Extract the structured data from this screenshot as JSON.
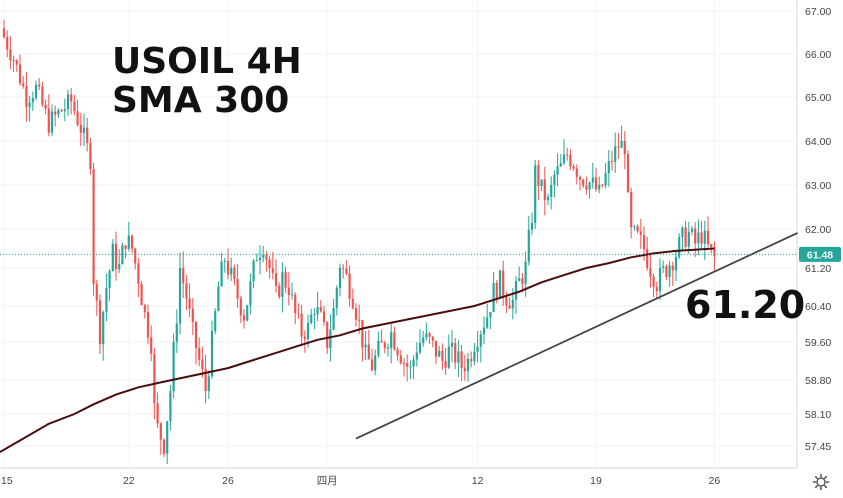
{
  "chart_data": {
    "type": "candlestick",
    "title_line1": "USOIL 4H",
    "title_line2": "SMA 300",
    "annotation_price": "61.20",
    "last_price_label": "61.48",
    "last_price": 61.48,
    "x_tick_labels": [
      "15",
      "22",
      "26",
      "四月",
      "12",
      "19",
      "26"
    ],
    "y_tick_labels": [
      "67.00",
      "66.00",
      "65.00",
      "64.00",
      "63.00",
      "62.00",
      "61.20",
      "60.40",
      "59.60",
      "58.80",
      "58.10",
      "57.45"
    ],
    "ylim": [
      57.2,
      67.2
    ],
    "grid": true,
    "colors": {
      "up": "#26a69a",
      "down": "#ef5350",
      "sma": "#4a0e0e",
      "trendline": "#444444",
      "price_tag": "#26a69a"
    },
    "close_path": [
      [
        0,
        66.4
      ],
      [
        3,
        65.9
      ],
      [
        7,
        65.0
      ],
      [
        10,
        65.2
      ],
      [
        14,
        64.4
      ],
      [
        18,
        64.7
      ],
      [
        21,
        64.9
      ],
      [
        24,
        64.3
      ],
      [
        27,
        63.6
      ],
      [
        28,
        61.0
      ],
      [
        29,
        60.4
      ],
      [
        30,
        59.8
      ],
      [
        32,
        60.8
      ],
      [
        34,
        61.5
      ],
      [
        36,
        61.2
      ],
      [
        38,
        61.8
      ],
      [
        40,
        61.6
      ],
      [
        42,
        61.0
      ],
      [
        44,
        60.2
      ],
      [
        46,
        59.6
      ],
      [
        47,
        58.2
      ],
      [
        48,
        57.8
      ],
      [
        50,
        57.5
      ],
      [
        52,
        58.6
      ],
      [
        54,
        60.2
      ],
      [
        55,
        61.2
      ],
      [
        57,
        60.6
      ],
      [
        59,
        59.8
      ],
      [
        61,
        59.2
      ],
      [
        63,
        58.6
      ],
      [
        65,
        59.6
      ],
      [
        67,
        60.8
      ],
      [
        69,
        61.4
      ],
      [
        71,
        61.0
      ],
      [
        73,
        60.6
      ],
      [
        75,
        60.2
      ],
      [
        77,
        60.8
      ],
      [
        79,
        61.5
      ],
      [
        81,
        61.7
      ],
      [
        83,
        61.2
      ],
      [
        85,
        60.6
      ],
      [
        87,
        61.0
      ],
      [
        89,
        60.8
      ],
      [
        91,
        60.2
      ],
      [
        93,
        59.8
      ],
      [
        95,
        59.9
      ],
      [
        97,
        60.4
      ],
      [
        99,
        60.1
      ],
      [
        101,
        59.6
      ],
      [
        103,
        60.3
      ],
      [
        105,
        61.3
      ],
      [
        107,
        61.0
      ],
      [
        109,
        60.6
      ],
      [
        111,
        60.0
      ],
      [
        113,
        59.3
      ],
      [
        115,
        59.1
      ],
      [
        117,
        59.4
      ],
      [
        119,
        59.6
      ],
      [
        121,
        59.8
      ],
      [
        123,
        59.5
      ],
      [
        125,
        59.2
      ],
      [
        127,
        59.0
      ],
      [
        129,
        59.5
      ],
      [
        131,
        59.7
      ],
      [
        133,
        59.6
      ],
      [
        135,
        59.4
      ],
      [
        137,
        59.2
      ],
      [
        139,
        59.4
      ],
      [
        141,
        59.3
      ],
      [
        143,
        59.1
      ],
      [
        145,
        59.2
      ],
      [
        147,
        59.6
      ],
      [
        149,
        59.9
      ],
      [
        151,
        60.2
      ],
      [
        153,
        60.7
      ],
      [
        155,
        60.9
      ],
      [
        157,
        60.6
      ],
      [
        159,
        60.5
      ],
      [
        161,
        60.9
      ],
      [
        163,
        61.2
      ],
      [
        165,
        62.3
      ],
      [
        166,
        63.3
      ],
      [
        168,
        62.9
      ],
      [
        170,
        62.6
      ],
      [
        172,
        63.2
      ],
      [
        174,
        63.4
      ],
      [
        176,
        63.7
      ],
      [
        178,
        63.5
      ],
      [
        180,
        63.2
      ],
      [
        182,
        63.1
      ],
      [
        184,
        63.0
      ],
      [
        186,
        62.8
      ],
      [
        188,
        63.2
      ],
      [
        190,
        63.6
      ],
      [
        192,
        63.9
      ],
      [
        194,
        63.9
      ],
      [
        195,
        62.6
      ],
      [
        196,
        61.9
      ],
      [
        198,
        61.8
      ],
      [
        200,
        61.6
      ],
      [
        202,
        61.2
      ],
      [
        204,
        60.9
      ],
      [
        206,
        61.1
      ],
      [
        208,
        61.3
      ],
      [
        210,
        61.5
      ],
      [
        212,
        61.8
      ],
      [
        214,
        61.9
      ],
      [
        216,
        61.7
      ],
      [
        218,
        61.9
      ],
      [
        220,
        61.6
      ],
      [
        222,
        61.4
      ]
    ],
    "sma_path": [
      [
        -2,
        57.3
      ],
      [
        6,
        57.6
      ],
      [
        14,
        57.9
      ],
      [
        22,
        58.1
      ],
      [
        28,
        58.3
      ],
      [
        35,
        58.5
      ],
      [
        42,
        58.65
      ],
      [
        49,
        58.75
      ],
      [
        56,
        58.85
      ],
      [
        63,
        58.95
      ],
      [
        70,
        59.05
      ],
      [
        77,
        59.2
      ],
      [
        84,
        59.35
      ],
      [
        91,
        59.5
      ],
      [
        98,
        59.65
      ],
      [
        105,
        59.75
      ],
      [
        112,
        59.9
      ],
      [
        119,
        60.0
      ],
      [
        126,
        60.1
      ],
      [
        133,
        60.2
      ],
      [
        140,
        60.3
      ],
      [
        147,
        60.4
      ],
      [
        154,
        60.55
      ],
      [
        161,
        60.7
      ],
      [
        168,
        60.9
      ],
      [
        175,
        61.05
      ],
      [
        182,
        61.2
      ],
      [
        189,
        61.3
      ],
      [
        196,
        61.42
      ],
      [
        203,
        61.5
      ],
      [
        210,
        61.55
      ],
      [
        217,
        61.58
      ],
      [
        222,
        61.6
      ]
    ],
    "trendline": [
      [
        110,
        57.6
      ],
      [
        248,
        61.92
      ]
    ]
  }
}
